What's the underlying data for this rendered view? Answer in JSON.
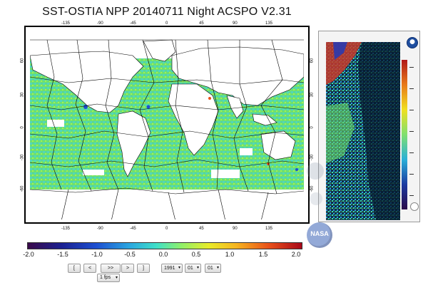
{
  "title": "SST-OSTIA  NPP  20140711  Night ACSPO V2.31",
  "map": {
    "lon_ticks": [
      "-135",
      "-90",
      "-45",
      "0",
      "45",
      "90",
      "135"
    ],
    "lat_ticks_left": [
      "60",
      "30",
      "0",
      "-30",
      "-60"
    ],
    "lat_ticks_right": [
      "60",
      "30",
      "0",
      "-30",
      "-60"
    ]
  },
  "colorbar": {
    "labels": [
      "-2.0",
      "-1.5",
      "-1.0",
      "-0.5",
      "0.0",
      "0.5",
      "1.0",
      "1.5",
      "2.0"
    ]
  },
  "controls": {
    "first": "[",
    "prev": "<",
    "play": ">>",
    "next": ">",
    "last": "]",
    "year": "1991",
    "month": "01",
    "day": "01",
    "speed": "1 fps"
  },
  "side_panel": {
    "palette": [
      "#b01818",
      "#e87a1a",
      "#f0e020",
      "#7fe070",
      "#2ab0d8",
      "#1b3aa0"
    ]
  },
  "logos": {
    "nasa": "NASA"
  }
}
